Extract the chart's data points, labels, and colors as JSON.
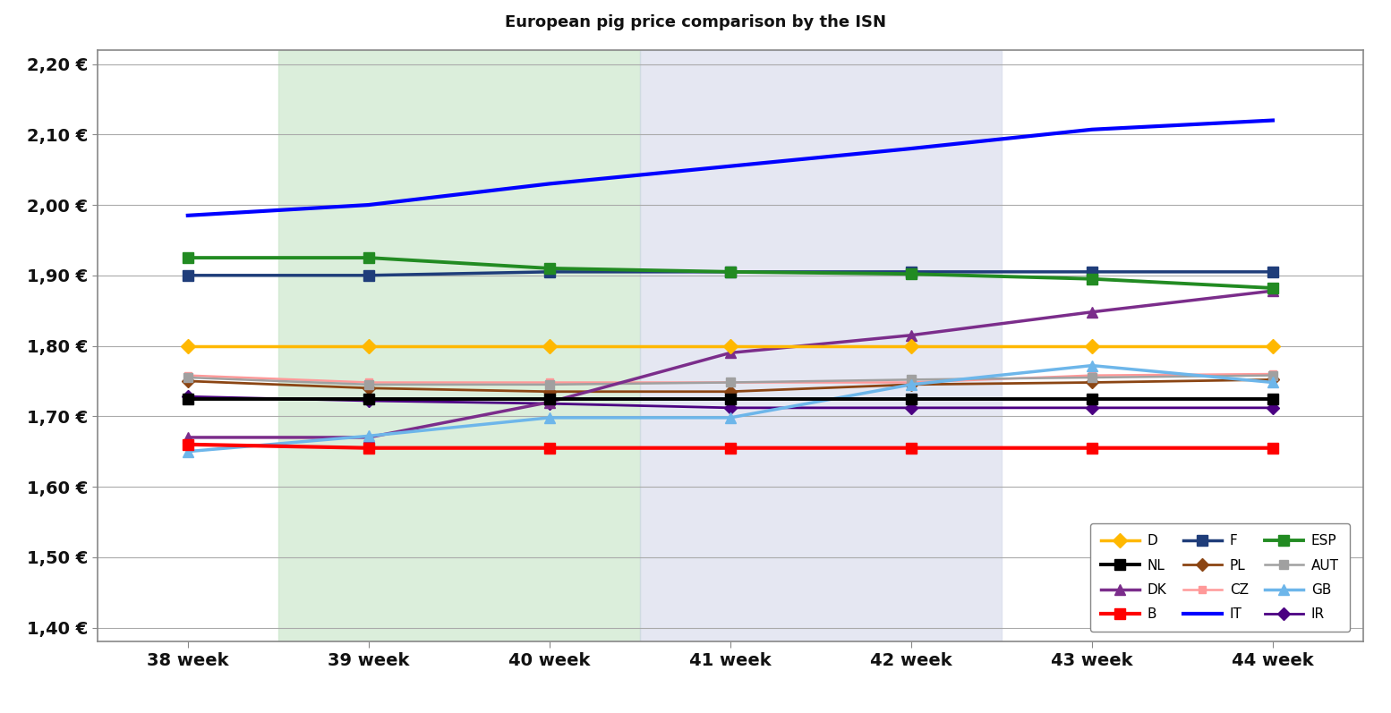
{
  "weeks": [
    38,
    39,
    40,
    41,
    42,
    43,
    44
  ],
  "series": {
    "D": {
      "values": [
        1.8,
        1.8,
        1.8,
        1.8,
        1.8,
        1.8,
        1.8
      ],
      "color": "#FFB800",
      "marker": "D",
      "lw": 2.5,
      "ms": 8,
      "zorder": 6
    },
    "NL": {
      "values": [
        1.725,
        1.725,
        1.725,
        1.725,
        1.725,
        1.725,
        1.725
      ],
      "color": "#000000",
      "marker": "s",
      "lw": 2.8,
      "ms": 8,
      "zorder": 6
    },
    "DK": {
      "values": [
        1.67,
        1.67,
        1.72,
        1.79,
        1.815,
        1.848,
        1.878
      ],
      "color": "#7B2D8B",
      "marker": "^",
      "lw": 2.5,
      "ms": 9,
      "zorder": 5
    },
    "B": {
      "values": [
        1.66,
        1.655,
        1.655,
        1.655,
        1.655,
        1.655,
        1.655
      ],
      "color": "#FF0000",
      "marker": "s",
      "lw": 3.0,
      "ms": 9,
      "zorder": 6
    },
    "F": {
      "values": [
        1.9,
        1.9,
        1.905,
        1.905,
        1.905,
        1.905,
        1.905
      ],
      "color": "#1F3D7A",
      "marker": "s",
      "lw": 2.5,
      "ms": 8,
      "zorder": 5
    },
    "PL": {
      "values": [
        1.75,
        1.74,
        1.735,
        1.735,
        1.745,
        1.748,
        1.752
      ],
      "color": "#8B4513",
      "marker": "D",
      "lw": 2.0,
      "ms": 7,
      "zorder": 4
    },
    "CZ": {
      "values": [
        1.758,
        1.748,
        1.748,
        1.748,
        1.748,
        1.758,
        1.76
      ],
      "color": "#FF9999",
      "marker": "s",
      "lw": 1.8,
      "ms": 6,
      "zorder": 4
    },
    "IT": {
      "values": [
        1.985,
        2.0,
        2.03,
        2.055,
        2.08,
        2.107,
        2.12
      ],
      "color": "#0000FF",
      "marker": null,
      "lw": 3.0,
      "ms": 0,
      "zorder": 7
    },
    "ESP": {
      "values": [
        1.925,
        1.925,
        1.91,
        1.905,
        1.902,
        1.895,
        1.882
      ],
      "color": "#228B22",
      "marker": "s",
      "lw": 2.8,
      "ms": 8,
      "zorder": 5
    },
    "AUT": {
      "values": [
        1.755,
        1.745,
        1.745,
        1.748,
        1.752,
        1.755,
        1.758
      ],
      "color": "#A0A0A0",
      "marker": "s",
      "lw": 1.8,
      "ms": 7,
      "zorder": 4
    },
    "GB": {
      "values": [
        1.65,
        1.672,
        1.698,
        1.698,
        1.745,
        1.772,
        1.748
      ],
      "color": "#6DB6EA",
      "marker": "^",
      "lw": 2.5,
      "ms": 9,
      "zorder": 5
    },
    "IR": {
      "values": [
        1.728,
        1.722,
        1.718,
        1.712,
        1.712,
        1.712,
        1.712
      ],
      "color": "#4B0082",
      "marker": "D",
      "lw": 2.0,
      "ms": 7,
      "zorder": 4
    }
  },
  "title": "European pig price comparison by the ISN",
  "ylim": [
    1.38,
    2.22
  ],
  "yticks": [
    1.4,
    1.5,
    1.6,
    1.7,
    1.8,
    1.9,
    2.0,
    2.1,
    2.2
  ],
  "bg_color": "#FFFFFF",
  "green_band": [
    1,
    3
  ],
  "grey_band": [
    3,
    5
  ],
  "legend_order": [
    "D",
    "NL",
    "DK",
    "B",
    "F",
    "PL",
    "CZ",
    "IT",
    "ESP",
    "AUT",
    "GB",
    "IR"
  ]
}
